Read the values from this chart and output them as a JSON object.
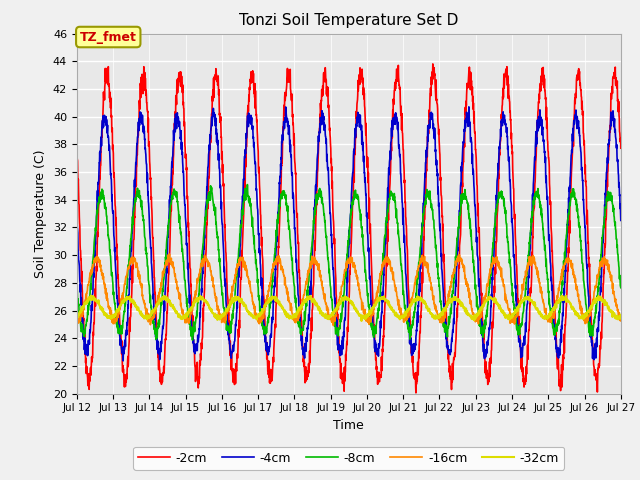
{
  "title": "Tonzi Soil Temperature Set D",
  "xlabel": "Time",
  "ylabel": "Soil Temperature (C)",
  "ylim": [
    20,
    46
  ],
  "xlim": [
    0,
    360
  ],
  "fig_facecolor": "#f0f0f0",
  "plot_bg_color": "#e8e8e8",
  "series": {
    "-2cm": {
      "color": "#ff0000",
      "lw": 1.2
    },
    "-4cm": {
      "color": "#0000cc",
      "lw": 1.2
    },
    "-8cm": {
      "color": "#00bb00",
      "lw": 1.2
    },
    "-16cm": {
      "color": "#ff8800",
      "lw": 1.2
    },
    "-32cm": {
      "color": "#dddd00",
      "lw": 1.5
    }
  },
  "xtick_positions": [
    0,
    24,
    48,
    72,
    96,
    120,
    144,
    168,
    192,
    216,
    240,
    264,
    288,
    312,
    336,
    360
  ],
  "xtick_labels": [
    "Jul 12",
    "Jul 13",
    "Jul 14",
    "Jul 15",
    "Jul 16",
    "Jul 17",
    "Jul 18",
    "Jul 19",
    "Jul 20",
    "Jul 21",
    "Jul 22",
    "Jul 23",
    "Jul 24",
    "Jul 25",
    "Jul 26",
    "Jul 27"
  ],
  "ytick_positions": [
    20,
    22,
    24,
    26,
    28,
    30,
    32,
    34,
    36,
    38,
    40,
    42,
    44,
    46
  ],
  "annotation_text": "TZ_fmet",
  "annotation_color": "#cc0000",
  "annotation_bg": "#ffff99",
  "annotation_border": "#999900",
  "params": {
    "2cm": {
      "amp": 11.0,
      "phase": 0.0,
      "base": 32.0,
      "noise": 0.4
    },
    "4cm": {
      "amp": 8.5,
      "phase": 1.5,
      "base": 31.5,
      "noise": 0.3
    },
    "8cm": {
      "amp": 5.0,
      "phase": 3.5,
      "base": 29.5,
      "noise": 0.2
    },
    "16cm": {
      "amp": 2.2,
      "phase": 7.0,
      "base": 27.5,
      "noise": 0.15
    },
    "32cm": {
      "amp": 0.7,
      "phase": 10.0,
      "base": 26.2,
      "noise": 0.08
    }
  }
}
